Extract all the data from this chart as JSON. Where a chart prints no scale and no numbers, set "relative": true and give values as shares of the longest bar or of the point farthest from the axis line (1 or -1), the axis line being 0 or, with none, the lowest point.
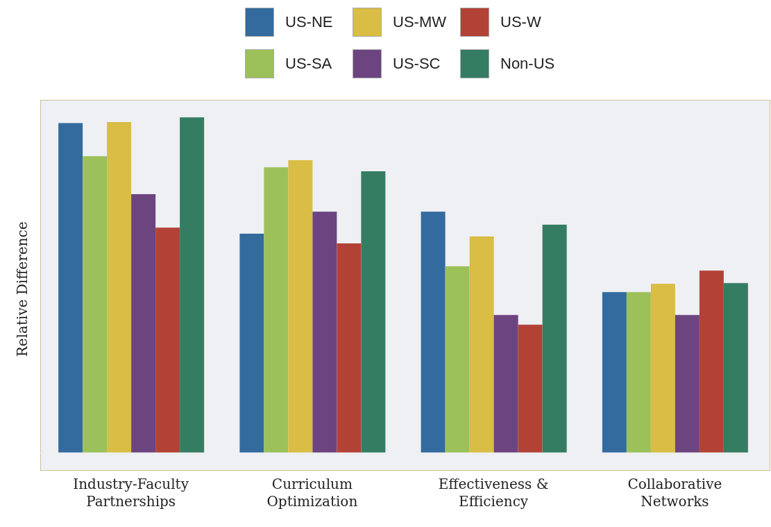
{
  "chart_data": {
    "type": "bar",
    "relative": true,
    "ylabel": "Relative Difference",
    "legend": "top",
    "grid": false,
    "categories": [
      "Industry-Faculty Partnerships",
      "Curriculum Optimization",
      "Effectiveness & Efficiency",
      "Collaborative Networks"
    ],
    "series": [
      {
        "name": "US-NE",
        "color": "#336b9e",
        "values": [
          0.983,
          0.653,
          0.719,
          0.479
        ]
      },
      {
        "name": "US-SA",
        "color": "#9cc15b",
        "values": [
          0.884,
          0.851,
          0.556,
          0.479
        ]
      },
      {
        "name": "US-MW",
        "color": "#d9bd45",
        "values": [
          0.986,
          0.872,
          0.645,
          0.504
        ]
      },
      {
        "name": "US-SC",
        "color": "#6c4480",
        "values": [
          0.771,
          0.719,
          0.411,
          0.411
        ]
      },
      {
        "name": "US-W",
        "color": "#b34236",
        "values": [
          0.671,
          0.624,
          0.382,
          0.543
        ]
      },
      {
        "name": "Non-US",
        "color": "#357d62",
        "values": [
          1,
          0.839,
          0.68,
          0.506
        ]
      }
    ]
  }
}
